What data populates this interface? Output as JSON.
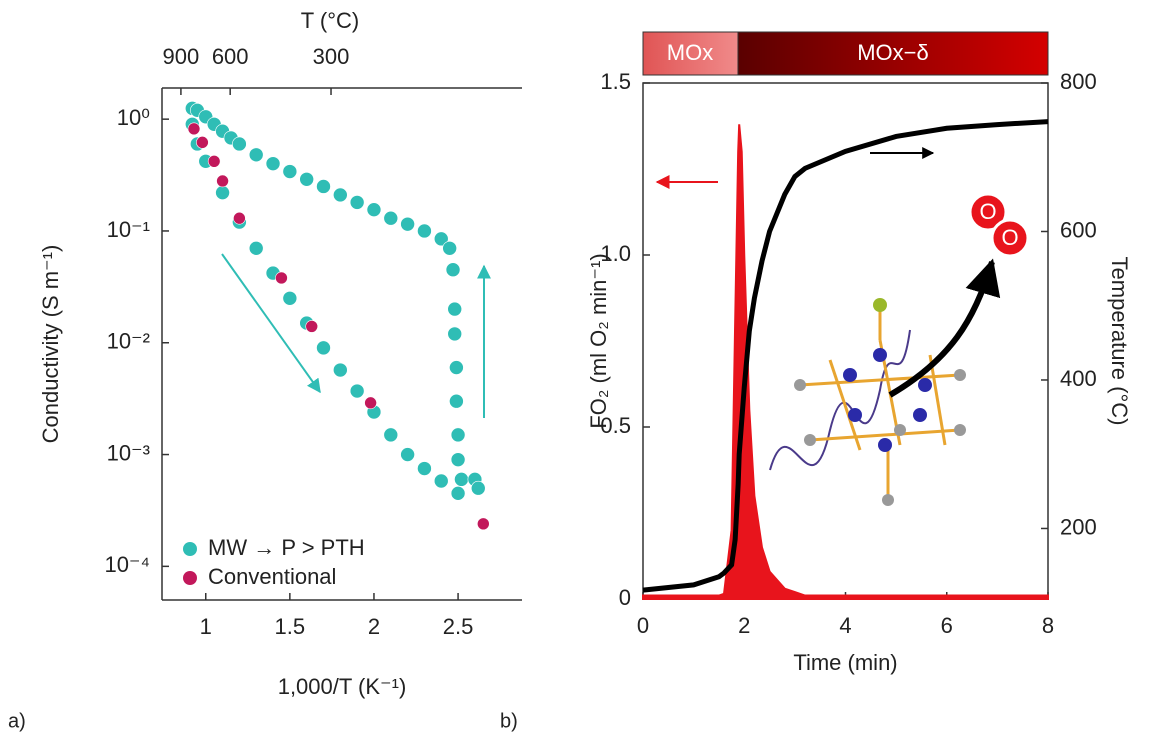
{
  "chart_data": [
    {
      "type": "scatter",
      "panel_label": "a)",
      "xlabel": "1,000/T (K⁻¹)",
      "ylabel": "Conductivity (S m⁻¹)",
      "top_axis": {
        "label": "T (°C)",
        "ticks": [
          900,
          600,
          300
        ]
      },
      "xlim": [
        0.74,
        2.88
      ],
      "xticks": [
        1.0,
        1.5,
        2.0,
        2.5
      ],
      "ylim": [
        5e-05,
        1.9
      ],
      "log_y": true,
      "yticks": [
        {
          "value": 1,
          "label": "10⁰"
        },
        {
          "value": 0.1,
          "label": "10⁻¹"
        },
        {
          "value": 0.01,
          "label": "10⁻²"
        },
        {
          "value": 0.001,
          "label": "10⁻³"
        },
        {
          "value": 0.0001,
          "label": "10⁻⁴"
        }
      ],
      "legend": "lower left",
      "series": [
        {
          "name": "MW → P > PTH",
          "color": "#2fbdb5",
          "x": [
            0.92,
            0.95,
            1.0,
            1.05,
            1.1,
            1.15,
            1.2,
            1.3,
            1.4,
            1.5,
            1.6,
            1.7,
            1.8,
            1.9,
            2.0,
            2.1,
            2.2,
            2.3,
            2.4,
            2.45,
            2.47,
            2.48,
            2.48,
            2.49,
            2.49,
            2.5,
            2.5,
            2.52,
            2.6,
            2.62,
            2.5,
            2.4,
            2.3,
            2.2,
            2.1,
            2.0,
            1.9,
            1.8,
            1.7,
            1.6,
            1.5,
            1.4,
            1.3,
            1.2,
            1.1,
            1.0,
            0.95,
            0.92
          ],
          "values": [
            1.25,
            1.2,
            1.05,
            0.9,
            0.78,
            0.68,
            0.6,
            0.48,
            0.4,
            0.34,
            0.29,
            0.25,
            0.21,
            0.18,
            0.155,
            0.13,
            0.115,
            0.1,
            0.085,
            0.07,
            0.045,
            0.02,
            0.012,
            0.006,
            0.003,
            0.0015,
            0.0009,
            0.0006,
            0.0006,
            0.0005,
            0.00045,
            0.00058,
            0.00075,
            0.001,
            0.0015,
            0.0024,
            0.0037,
            0.0057,
            0.009,
            0.015,
            0.025,
            0.042,
            0.07,
            0.12,
            0.22,
            0.42,
            0.6,
            0.9
          ]
        },
        {
          "name": "Conventional",
          "color": "#c2185b",
          "x": [
            0.93,
            0.98,
            1.05,
            1.1,
            1.2,
            1.45,
            1.63,
            1.98,
            2.65
          ],
          "values": [
            0.82,
            0.62,
            0.42,
            0.28,
            0.13,
            0.038,
            0.014,
            0.0029,
            0.00024
          ]
        }
      ]
    },
    {
      "type": "line",
      "panel_label": "b)",
      "xlabel": "Time (min)",
      "ylabel": "FO₂ (ml O₂ min⁻¹)",
      "y2label": "Temperature (°C)",
      "bar_labels": [
        "MOx",
        "MOx−δ"
      ],
      "molecule_labels": [
        "O",
        "O"
      ],
      "xlim": [
        0,
        8
      ],
      "xticks": [
        0,
        2,
        4,
        6,
        8
      ],
      "ylim": [
        0,
        1.5
      ],
      "yticks": [
        0,
        0.5,
        {
          "value": 1,
          "label": "1.0"
        },
        1.5
      ],
      "y2lim": [
        105,
        800
      ],
      "y2ticks": [
        200,
        400,
        600,
        800
      ],
      "x": [
        0,
        1,
        1.5,
        1.6,
        1.75,
        1.82,
        1.88,
        1.9,
        1.95,
        2.0,
        2.1,
        2.2,
        2.35,
        2.5,
        2.8,
        3,
        3.2,
        4,
        5,
        6,
        7,
        8
      ],
      "series": [
        {
          "color": "#e8141c",
          "fill": true,
          "values": [
            0.01,
            0.01,
            0.01,
            0.015,
            0.2,
            0.8,
            1.3,
            1.38,
            1.3,
            1.0,
            0.55,
            0.3,
            0.15,
            0.08,
            0.03,
            0.02,
            0.01,
            0.01,
            0.01,
            0.01,
            0.01,
            0.01
          ]
        },
        {
          "color": "#000000",
          "axis": "y2",
          "values": [
            117,
            124,
            135,
            140,
            151,
            185,
            260,
            300,
            345,
            390,
            466,
            510,
            560,
            600,
            650,
            674,
            685,
            708,
            728,
            739,
            744,
            748
          ]
        }
      ]
    }
  ]
}
